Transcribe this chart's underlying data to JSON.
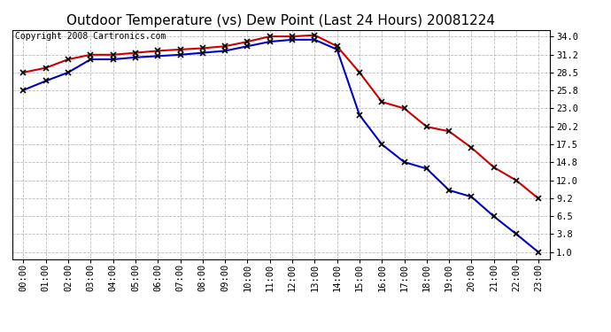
{
  "title": "Outdoor Temperature (vs) Dew Point (Last 24 Hours) 20081224",
  "copyright_text": "Copyright 2008 Cartronics.com",
  "hours": [
    "00:00",
    "01:00",
    "02:00",
    "03:00",
    "04:00",
    "05:00",
    "06:00",
    "07:00",
    "08:00",
    "09:00",
    "10:00",
    "11:00",
    "12:00",
    "13:00",
    "14:00",
    "15:00",
    "16:00",
    "17:00",
    "18:00",
    "19:00",
    "20:00",
    "21:00",
    "22:00",
    "23:00"
  ],
  "temp_red": [
    28.5,
    29.2,
    30.5,
    31.2,
    31.2,
    31.5,
    31.8,
    32.0,
    32.2,
    32.5,
    33.2,
    34.0,
    34.0,
    34.2,
    32.5,
    28.5,
    24.0,
    23.0,
    20.2,
    19.5,
    17.0,
    14.0,
    12.0,
    9.2
  ],
  "temp_blue": [
    25.8,
    27.2,
    28.5,
    30.5,
    30.5,
    30.8,
    31.0,
    31.2,
    31.5,
    31.8,
    32.5,
    33.2,
    33.5,
    33.5,
    32.0,
    22.0,
    17.5,
    14.8,
    13.8,
    10.5,
    9.5,
    6.5,
    3.8,
    1.0
  ],
  "yticks": [
    1.0,
    3.8,
    6.5,
    9.2,
    12.0,
    14.8,
    17.5,
    20.2,
    23.0,
    25.8,
    28.5,
    31.2,
    34.0
  ],
  "ymin": 1.0,
  "ymax": 34.0,
  "red_color": "#cc0000",
  "blue_color": "#0000cc",
  "grid_color": "#bbbbbb",
  "bg_color": "#ffffff",
  "title_fontsize": 11,
  "copyright_fontsize": 7,
  "tick_fontsize": 7.5,
  "marker": "x",
  "marker_color": "black",
  "marker_size": 4,
  "linewidth": 1.5
}
